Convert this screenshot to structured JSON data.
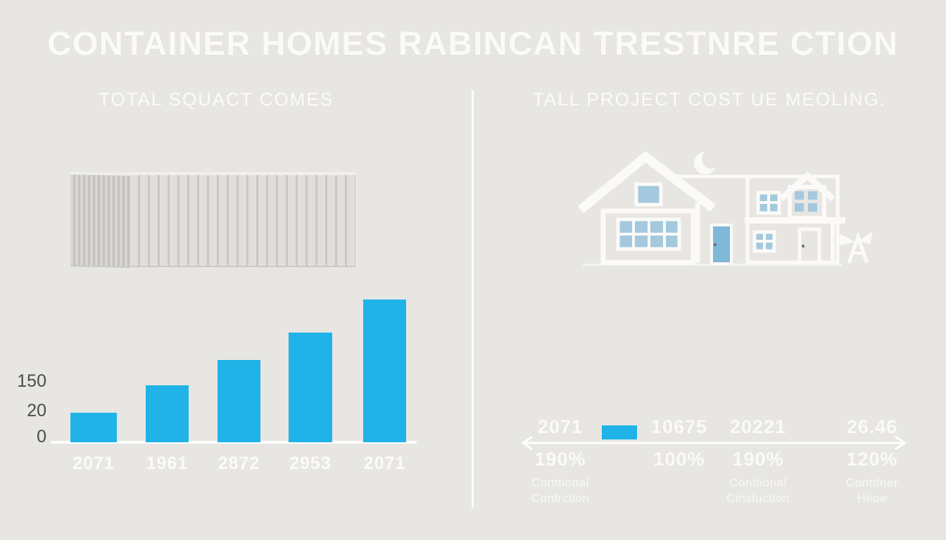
{
  "page": {
    "title": "CONTAINER HOMES RABINCAN TRESTNRE CTION",
    "background_color": "#E7E6E3",
    "text_color": "#FBFAF8",
    "accent_color": "#1FB3E8"
  },
  "left_panel": {
    "subtitle": "TOTAL SQUACT COMES",
    "illustration": "shipping-container"
  },
  "right_panel": {
    "subtitle": "TALL PROJECT COST UE MEOLING.",
    "illustration": "houses-with-moon",
    "window_color": "#A4C9DE",
    "door_color": "#7FB8D8",
    "icons": [
      "moon-icon",
      "bird-icon"
    ]
  },
  "chart_data": [
    {
      "type": "bar",
      "title": "TOTAL SQUACT COMES",
      "categories": [
        "2071",
        "1961",
        "2872",
        "2953",
        "2071"
      ],
      "values": [
        16,
        31,
        45,
        60,
        78
      ],
      "y_ticks": [
        "0",
        "20",
        "150"
      ],
      "ylim": [
        0,
        85
      ],
      "xlabel": "",
      "ylabel": "",
      "bar_color": "#1FB3E8",
      "grid": false,
      "legend": false
    },
    {
      "type": "table",
      "title": "TALL PROJECT COST UE MEOLING.",
      "axis_style": "horizontal-double-arrow",
      "marker": "small cyan bar between first and second column",
      "columns": [
        {
          "value": "2071",
          "percent": "190%",
          "label_lines": [
            "Conttional",
            "Contrction"
          ]
        },
        {
          "value": "10675",
          "percent": "100%",
          "label_lines": [
            "",
            ""
          ]
        },
        {
          "value": "20221",
          "percent": "190%",
          "label_lines": [
            "Conttional",
            "Cinstuction"
          ]
        },
        {
          "value": "26.46",
          "percent": "120%",
          "label_lines": [
            "Contdner",
            "Heoe"
          ]
        }
      ]
    }
  ]
}
